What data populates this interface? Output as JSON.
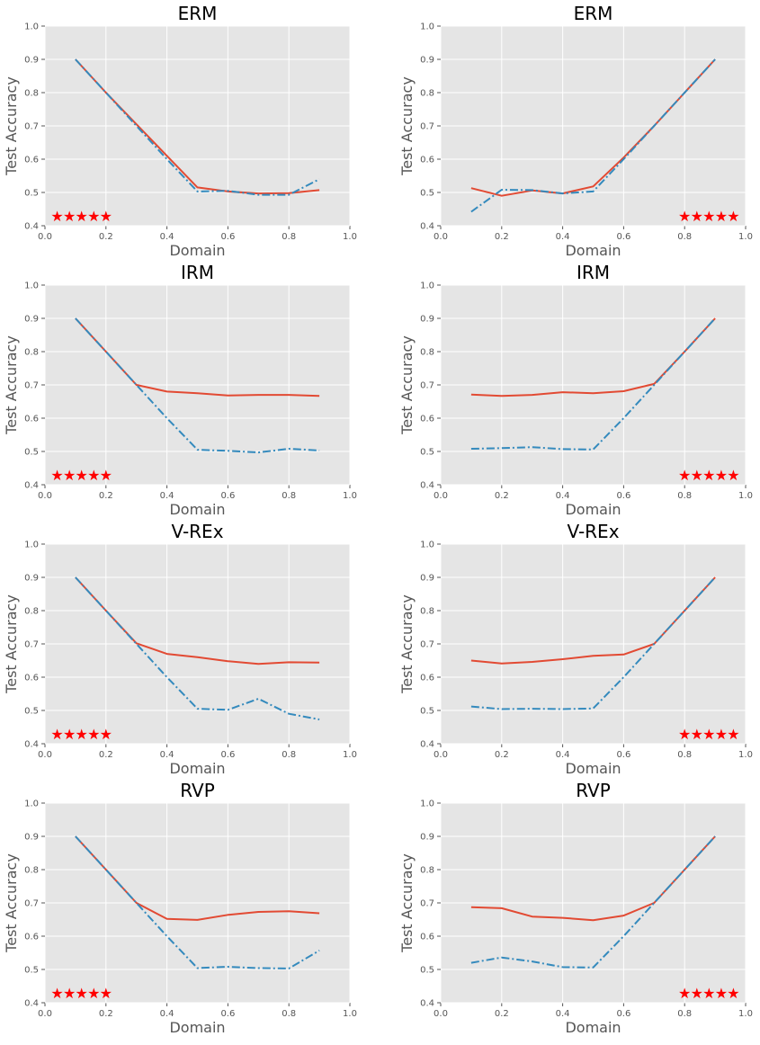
{
  "colors": {
    "series_a": "#e24a33",
    "series_b": "#348abd",
    "star": "#ff0000"
  },
  "chart_data": [
    {
      "type": "line",
      "title": "ERM",
      "xlabel": "Domain",
      "ylabel": "Test Accuracy",
      "xlim": [
        0,
        1
      ],
      "ylim": [
        0.4,
        1.0
      ],
      "xticks": [
        "0.0",
        "0.2",
        "0.4",
        "0.6",
        "0.8",
        "1.0"
      ],
      "yticks": [
        "0.4",
        "0.5",
        "0.6",
        "0.7",
        "0.8",
        "0.9",
        "1.0"
      ],
      "x": [
        0.1,
        0.2,
        0.3,
        0.4,
        0.5,
        0.6,
        0.7,
        0.8,
        0.9
      ],
      "series": [
        {
          "name": "solid",
          "style": "solid",
          "values": [
            0.9,
            0.8,
            0.705,
            0.61,
            0.515,
            0.503,
            0.497,
            0.498,
            0.507
          ]
        },
        {
          "name": "dashdot",
          "style": "dashdot",
          "values": [
            0.9,
            0.8,
            0.7,
            0.6,
            0.503,
            0.505,
            0.493,
            0.493,
            0.54
          ]
        }
      ],
      "stars": {
        "glyph": "★",
        "x": [
          0.04,
          0.08,
          0.12,
          0.16,
          0.2
        ],
        "y": 0.428
      }
    },
    {
      "type": "line",
      "title": "ERM",
      "xlabel": "Domain",
      "ylabel": "Test Accuracy",
      "xlim": [
        0,
        1
      ],
      "ylim": [
        0.4,
        1.0
      ],
      "xticks": [
        "0.0",
        "0.2",
        "0.4",
        "0.6",
        "0.8",
        "1.0"
      ],
      "yticks": [
        "0.4",
        "0.5",
        "0.6",
        "0.7",
        "0.8",
        "0.9",
        "1.0"
      ],
      "x": [
        0.1,
        0.2,
        0.3,
        0.4,
        0.5,
        0.6,
        0.7,
        0.8,
        0.9
      ],
      "series": [
        {
          "name": "solid",
          "style": "solid",
          "values": [
            0.513,
            0.49,
            0.506,
            0.497,
            0.518,
            0.605,
            0.7,
            0.8,
            0.9
          ]
        },
        {
          "name": "dashdot",
          "style": "dashdot",
          "values": [
            0.442,
            0.508,
            0.507,
            0.497,
            0.503,
            0.6,
            0.7,
            0.8,
            0.9
          ]
        }
      ],
      "stars": {
        "glyph": "★",
        "x": [
          0.8,
          0.84,
          0.88,
          0.92,
          0.96
        ],
        "y": 0.428
      }
    },
    {
      "type": "line",
      "title": "IRM",
      "xlabel": "Domain",
      "ylabel": "Test Accuracy",
      "xlim": [
        0,
        1
      ],
      "ylim": [
        0.4,
        1.0
      ],
      "xticks": [
        "0.0",
        "0.2",
        "0.4",
        "0.6",
        "0.8",
        "1.0"
      ],
      "yticks": [
        "0.4",
        "0.5",
        "0.6",
        "0.7",
        "0.8",
        "0.9",
        "1.0"
      ],
      "x": [
        0.1,
        0.2,
        0.3,
        0.4,
        0.5,
        0.6,
        0.7,
        0.8,
        0.9
      ],
      "series": [
        {
          "name": "solid",
          "style": "solid",
          "values": [
            0.9,
            0.8,
            0.7,
            0.68,
            0.675,
            0.668,
            0.67,
            0.67,
            0.667
          ]
        },
        {
          "name": "dashdot",
          "style": "dashdot",
          "values": [
            0.9,
            0.8,
            0.7,
            0.6,
            0.505,
            0.502,
            0.497,
            0.508,
            0.503
          ]
        }
      ],
      "stars": {
        "glyph": "★",
        "x": [
          0.04,
          0.08,
          0.12,
          0.16,
          0.2
        ],
        "y": 0.428
      }
    },
    {
      "type": "line",
      "title": "IRM",
      "xlabel": "Domain",
      "ylabel": "Test Accuracy",
      "xlim": [
        0,
        1
      ],
      "ylim": [
        0.4,
        1.0
      ],
      "xticks": [
        "0.0",
        "0.2",
        "0.4",
        "0.6",
        "0.8",
        "1.0"
      ],
      "yticks": [
        "0.4",
        "0.5",
        "0.6",
        "0.7",
        "0.8",
        "0.9",
        "1.0"
      ],
      "x": [
        0.1,
        0.2,
        0.3,
        0.4,
        0.5,
        0.6,
        0.7,
        0.8,
        0.9
      ],
      "series": [
        {
          "name": "solid",
          "style": "solid",
          "values": [
            0.671,
            0.667,
            0.67,
            0.678,
            0.675,
            0.681,
            0.703,
            0.8,
            0.9
          ]
        },
        {
          "name": "dashdot",
          "style": "dashdot",
          "values": [
            0.508,
            0.51,
            0.513,
            0.507,
            0.506,
            0.6,
            0.7,
            0.8,
            0.9
          ]
        }
      ],
      "stars": {
        "glyph": "★",
        "x": [
          0.8,
          0.84,
          0.88,
          0.92,
          0.96
        ],
        "y": 0.428
      }
    },
    {
      "type": "line",
      "title": "V-REx",
      "xlabel": "Domain",
      "ylabel": "Test Accuracy",
      "xlim": [
        0,
        1
      ],
      "ylim": [
        0.4,
        1.0
      ],
      "xticks": [
        "0.0",
        "0.2",
        "0.4",
        "0.6",
        "0.8",
        "1.0"
      ],
      "yticks": [
        "0.4",
        "0.5",
        "0.6",
        "0.7",
        "0.8",
        "0.9",
        "1.0"
      ],
      "x": [
        0.1,
        0.2,
        0.3,
        0.4,
        0.5,
        0.6,
        0.7,
        0.8,
        0.9
      ],
      "series": [
        {
          "name": "solid",
          "style": "solid",
          "values": [
            0.9,
            0.8,
            0.702,
            0.67,
            0.66,
            0.648,
            0.64,
            0.645,
            0.644
          ]
        },
        {
          "name": "dashdot",
          "style": "dashdot",
          "values": [
            0.9,
            0.8,
            0.7,
            0.6,
            0.505,
            0.502,
            0.535,
            0.49,
            0.473
          ]
        }
      ],
      "stars": {
        "glyph": "★",
        "x": [
          0.04,
          0.08,
          0.12,
          0.16,
          0.2
        ],
        "y": 0.428
      }
    },
    {
      "type": "line",
      "title": "V-REx",
      "xlabel": "Domain",
      "ylabel": "Test Accuracy",
      "xlim": [
        0,
        1
      ],
      "ylim": [
        0.4,
        1.0
      ],
      "xticks": [
        "0.0",
        "0.2",
        "0.4",
        "0.6",
        "0.8",
        "1.0"
      ],
      "yticks": [
        "0.4",
        "0.5",
        "0.6",
        "0.7",
        "0.8",
        "0.9",
        "1.0"
      ],
      "x": [
        0.1,
        0.2,
        0.3,
        0.4,
        0.5,
        0.6,
        0.7,
        0.8,
        0.9
      ],
      "series": [
        {
          "name": "solid",
          "style": "solid",
          "values": [
            0.65,
            0.641,
            0.646,
            0.654,
            0.664,
            0.668,
            0.7,
            0.8,
            0.9
          ]
        },
        {
          "name": "dashdot",
          "style": "dashdot",
          "values": [
            0.512,
            0.504,
            0.505,
            0.504,
            0.506,
            0.6,
            0.7,
            0.8,
            0.9
          ]
        }
      ],
      "stars": {
        "glyph": "★",
        "x": [
          0.8,
          0.84,
          0.88,
          0.92,
          0.96
        ],
        "y": 0.428
      }
    },
    {
      "type": "line",
      "title": "RVP",
      "xlabel": "Domain",
      "ylabel": "Test Accuracy",
      "xlim": [
        0,
        1
      ],
      "ylim": [
        0.4,
        1.0
      ],
      "xticks": [
        "0.0",
        "0.2",
        "0.4",
        "0.6",
        "0.8",
        "1.0"
      ],
      "yticks": [
        "0.4",
        "0.5",
        "0.6",
        "0.7",
        "0.8",
        "0.9",
        "1.0"
      ],
      "x": [
        0.1,
        0.2,
        0.3,
        0.4,
        0.5,
        0.6,
        0.7,
        0.8,
        0.9
      ],
      "series": [
        {
          "name": "solid",
          "style": "solid",
          "values": [
            0.9,
            0.8,
            0.7,
            0.652,
            0.649,
            0.664,
            0.673,
            0.675,
            0.669
          ]
        },
        {
          "name": "dashdot",
          "style": "dashdot",
          "values": [
            0.9,
            0.8,
            0.7,
            0.6,
            0.504,
            0.508,
            0.504,
            0.503,
            0.557
          ]
        }
      ],
      "stars": {
        "glyph": "★",
        "x": [
          0.04,
          0.08,
          0.12,
          0.16,
          0.2
        ],
        "y": 0.428
      }
    },
    {
      "type": "line",
      "title": "RVP",
      "xlabel": "Domain",
      "ylabel": "Test Accuracy",
      "xlim": [
        0,
        1
      ],
      "ylim": [
        0.4,
        1.0
      ],
      "xticks": [
        "0.0",
        "0.2",
        "0.4",
        "0.6",
        "0.8",
        "1.0"
      ],
      "yticks": [
        "0.4",
        "0.5",
        "0.6",
        "0.7",
        "0.8",
        "0.9",
        "1.0"
      ],
      "x": [
        0.1,
        0.2,
        0.3,
        0.4,
        0.5,
        0.6,
        0.7,
        0.8,
        0.9
      ],
      "series": [
        {
          "name": "solid",
          "style": "solid",
          "values": [
            0.687,
            0.684,
            0.659,
            0.655,
            0.648,
            0.662,
            0.7,
            0.8,
            0.9
          ]
        },
        {
          "name": "dashdot",
          "style": "dashdot",
          "values": [
            0.52,
            0.536,
            0.524,
            0.507,
            0.506,
            0.6,
            0.7,
            0.8,
            0.9
          ]
        }
      ],
      "stars": {
        "glyph": "★",
        "x": [
          0.8,
          0.84,
          0.88,
          0.92,
          0.96
        ],
        "y": 0.428
      }
    }
  ]
}
